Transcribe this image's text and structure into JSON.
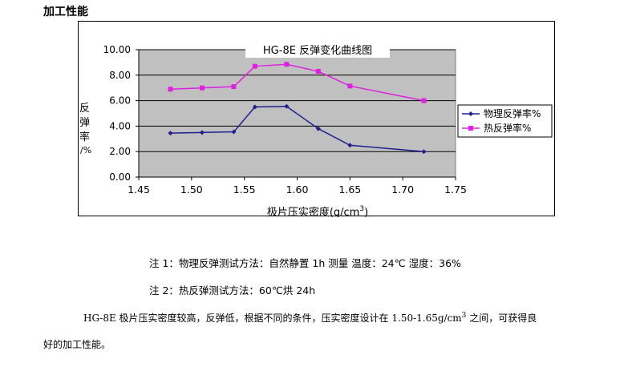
{
  "section_title": "加工性能",
  "chart_data": {
    "type": "line",
    "title": "HG-8E 反弹变化曲线图",
    "xlabel_prefix": "极片压实密度(g/cm",
    "xlabel_sup": "3",
    "xlabel_suffix": ")",
    "ylabel_chars": [
      "反",
      "弹",
      "率",
      "/%"
    ],
    "xlim": [
      1.45,
      1.75
    ],
    "ylim": [
      0,
      10
    ],
    "x_ticks": [
      "1.45",
      "1.50",
      "1.55",
      "1.60",
      "1.65",
      "1.70",
      "1.75"
    ],
    "y_ticks": [
      "0.00",
      "2.00",
      "4.00",
      "6.00",
      "8.00",
      "10.00"
    ],
    "grid": true,
    "legend_position": "right",
    "series": [
      {
        "name": "物理反弹率%",
        "color": "#1f1f8f",
        "marker": "diamond",
        "x": [
          1.48,
          1.51,
          1.54,
          1.56,
          1.59,
          1.62,
          1.65,
          1.72
        ],
        "y": [
          3.45,
          3.5,
          3.55,
          5.5,
          5.55,
          3.8,
          2.5,
          2.0
        ]
      },
      {
        "name": "热反弹率%",
        "color": "#e020e0",
        "marker": "square",
        "x": [
          1.48,
          1.51,
          1.54,
          1.56,
          1.59,
          1.62,
          1.65,
          1.72
        ],
        "y": [
          6.9,
          7.0,
          7.1,
          8.7,
          8.85,
          8.3,
          7.15,
          6.0
        ]
      }
    ]
  },
  "notes": {
    "note1": "注 1：物理反弹测试方法：自然静置 1h 测量   温度：24℃    湿度：36%",
    "note2": "注 2：热反弹测试方法：60℃烘 24h"
  },
  "paragraph": {
    "line1_a": "HG-8E 极片压实密度较高，反弹低，根据不同的条件，压实密度设计在  1.50-1.65g/cm",
    "line1_sup": "3",
    "line1_b": " 之间，可获得良",
    "line2": "好的加工性能。"
  },
  "colors": {
    "plot_bg": "#c0c0c0",
    "grid": "#000000"
  }
}
